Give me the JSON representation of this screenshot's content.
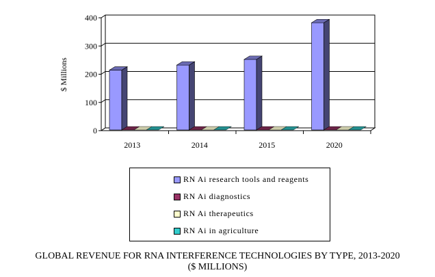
{
  "chart_data": {
    "type": "bar",
    "style": "3d-clustered",
    "title": "GLOBAL REVENUE FOR RNA INTERFERENCE TECHNOLOGIES BY TYPE, 2013-2020",
    "subtitle": "($ MILLIONS)",
    "xlabel": "",
    "ylabel": "$ Millions",
    "ylim": [
      0,
      400
    ],
    "yticks": [
      "0",
      "100",
      "200",
      "300",
      "400"
    ],
    "ytick_values": [
      0,
      100,
      200,
      300,
      400
    ],
    "categories": [
      "2013",
      "2014",
      "2015",
      "2020"
    ],
    "grid": true,
    "legend_position": "bottom",
    "series": [
      {
        "name": "RNAi research tools and reagents",
        "color": "#9999ff",
        "values": [
          212,
          230,
          250,
          380
        ]
      },
      {
        "name": "RNAi diagnostics",
        "color": "#993366",
        "values": [
          0,
          0,
          0,
          0
        ]
      },
      {
        "name": "RNAi therapeutics",
        "color": "#ffffcc",
        "values": [
          0,
          0,
          0,
          0
        ]
      },
      {
        "name": "RNAi in agriculture",
        "color": "#33cccc",
        "values": [
          0,
          0,
          0,
          0
        ]
      }
    ]
  },
  "legend": {
    "items": [
      {
        "label": "RN Ai research tools and reagents",
        "color": "#9999ff"
      },
      {
        "label": "RN Ai diagnostics",
        "color": "#993366"
      },
      {
        "label": "RN Ai therapeutics",
        "color": "#ffffcc"
      },
      {
        "label": "RN Ai in agriculture",
        "color": "#33cccc"
      }
    ]
  },
  "title_lines": [
    "GLOBAL REVENUE FOR RNA INTERFERENCE TECHNOLOGIES BY TYPE, 2013-2020",
    "($ MILLIONS)"
  ]
}
